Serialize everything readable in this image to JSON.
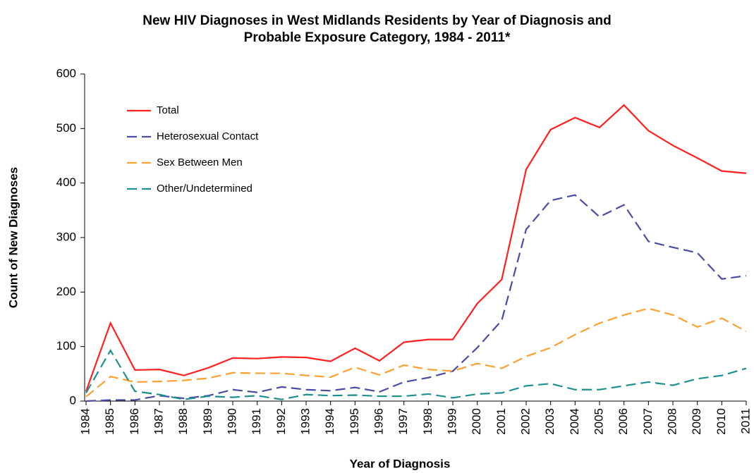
{
  "chart_data": {
    "type": "line",
    "title": "New HIV Diagnoses in West Midlands Residents by Year of Diagnosis and\nProbable Exposure Category, 1984 - 2011*",
    "x_label": "Year of Diagnosis",
    "y_label": "Count of New Diagnoses",
    "categories": [
      "1984",
      "1985",
      "1986",
      "1987",
      "1988",
      "1989",
      "1990",
      "1991",
      "1992",
      "1993",
      "1994",
      "1995",
      "1996",
      "1997",
      "1998",
      "1999",
      "2000",
      "2001",
      "2002",
      "2003",
      "2004",
      "2005",
      "2006",
      "2007",
      "2008",
      "2009",
      "2010",
      "2011"
    ],
    "series": [
      {
        "name": "Total",
        "color": "#ff2020",
        "dash": false,
        "values": [
          18,
          143,
          57,
          58,
          47,
          61,
          79,
          78,
          81,
          80,
          73,
          97,
          74,
          108,
          113,
          113,
          179,
          223,
          425,
          498,
          520,
          502,
          543,
          496,
          469,
          446,
          422,
          418
        ]
      },
      {
        "name": "Heterosexual Contact",
        "color": "#4b4ba8",
        "dash": true,
        "values": [
          0,
          2,
          2,
          10,
          5,
          10,
          21,
          16,
          26,
          21,
          19,
          25,
          17,
          35,
          43,
          55,
          98,
          148,
          315,
          368,
          378,
          338,
          360,
          293,
          282,
          272,
          224,
          230
        ]
      },
      {
        "name": "Sex Between Men",
        "color": "#ffa030",
        "dash": true,
        "values": [
          8,
          45,
          35,
          36,
          38,
          42,
          52,
          51,
          51,
          47,
          44,
          62,
          48,
          66,
          58,
          55,
          69,
          60,
          82,
          98,
          122,
          143,
          158,
          170,
          158,
          136,
          152,
          128
        ]
      },
      {
        "name": "Other/Undetermined",
        "color": "#1f9090",
        "dash": true,
        "values": [
          15,
          93,
          18,
          12,
          3,
          9,
          7,
          10,
          3,
          12,
          10,
          11,
          9,
          9,
          13,
          6,
          13,
          15,
          28,
          32,
          21,
          21,
          28,
          35,
          29,
          41,
          47,
          60
        ]
      }
    ],
    "ylim": [
      0,
      600
    ],
    "yticks": [
      0,
      100,
      200,
      300,
      400,
      500,
      600
    ],
    "legend": "upper-left"
  }
}
